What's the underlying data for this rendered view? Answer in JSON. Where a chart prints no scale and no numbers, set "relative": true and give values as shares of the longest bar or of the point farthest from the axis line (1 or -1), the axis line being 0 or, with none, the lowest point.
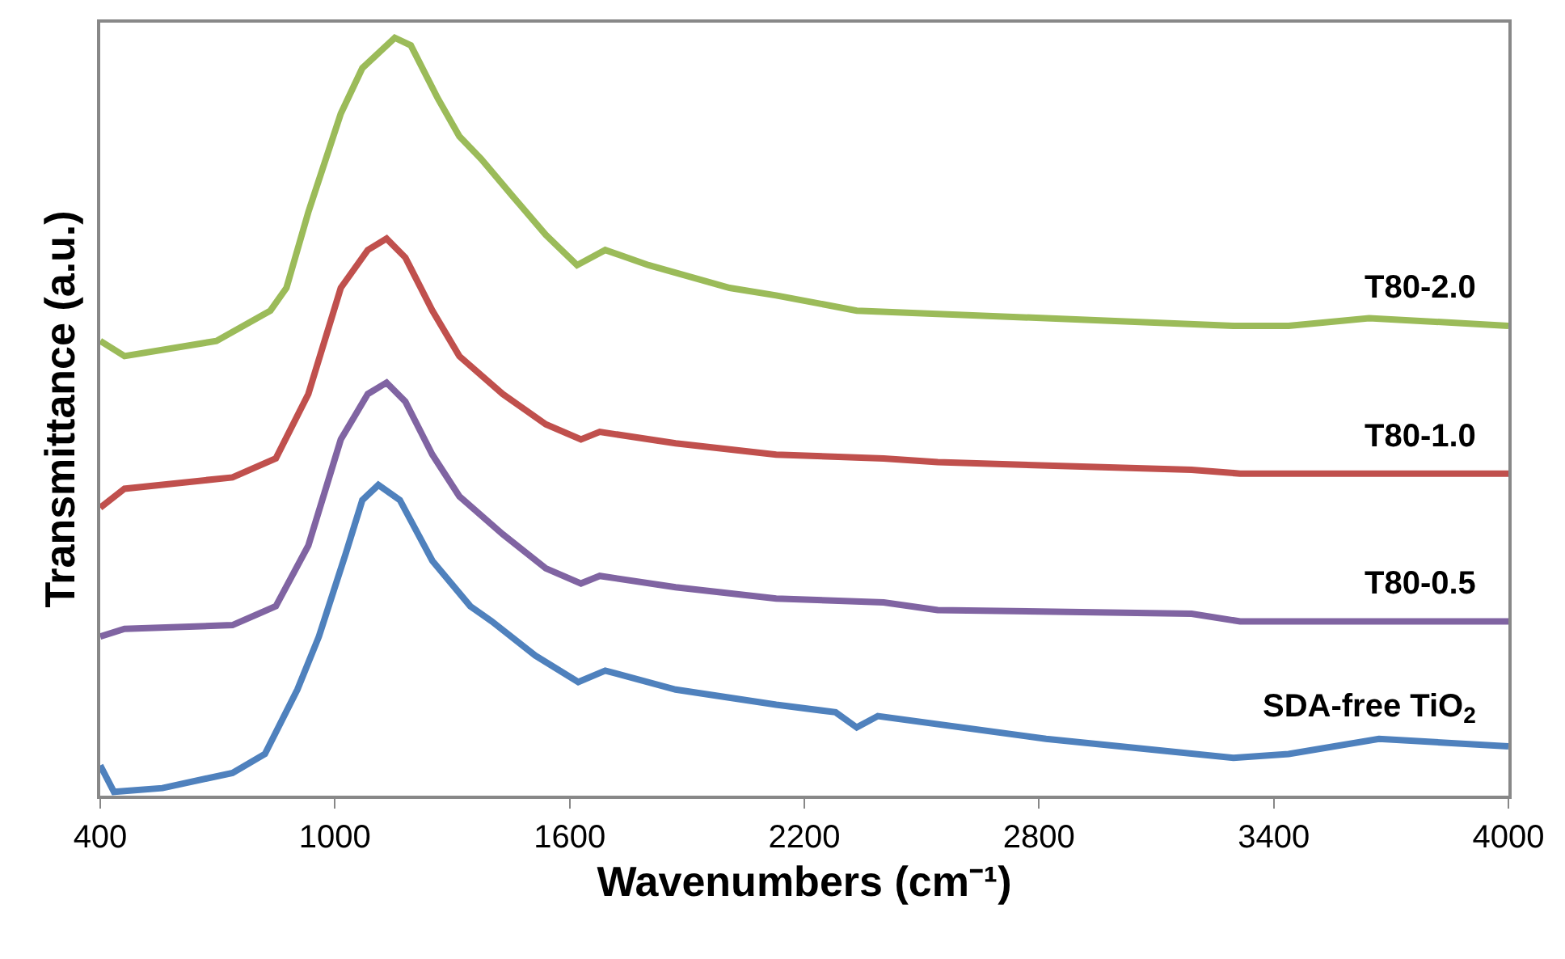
{
  "chart_data": {
    "type": "line",
    "relative": true,
    "xlabel": "Wavenumbers (cm⁻¹)",
    "ylabel": "Transmittance (a.u.)",
    "xlim": [
      400,
      4000
    ],
    "xticks": [
      400,
      1000,
      1600,
      2200,
      2800,
      3400,
      4000
    ],
    "legend": false,
    "marker": "none",
    "line_style": "solid",
    "series": [
      {
        "name": "T80-2.0",
        "color": "#9bbb59",
        "x": [
          400,
          462,
          697,
          835,
          876,
          932,
          1015,
          1070,
          1153,
          1194,
          1263,
          1318,
          1374,
          1456,
          1539,
          1619,
          1691,
          1802,
          2009,
          2128,
          2334,
          2818,
          3297,
          3438,
          3644,
          4000
        ],
        "values": [
          0.6,
          0.58,
          0.6,
          0.64,
          0.67,
          0.77,
          0.9,
          0.96,
          1.0,
          0.99,
          0.92,
          0.87,
          0.84,
          0.79,
          0.74,
          0.7,
          0.72,
          0.7,
          0.67,
          0.66,
          0.64,
          0.63,
          0.62,
          0.62,
          0.63,
          0.62
        ]
      },
      {
        "name": "T80-1.0",
        "color": "#c0504d",
        "x": [
          400,
          462,
          738,
          849,
          932,
          1015,
          1084,
          1132,
          1180,
          1249,
          1318,
          1429,
          1539,
          1629,
          1677,
          1871,
          2128,
          2403,
          2541,
          3190,
          3314,
          4000
        ],
        "values": [
          0.38,
          0.405,
          0.42,
          0.445,
          0.53,
          0.67,
          0.72,
          0.735,
          0.71,
          0.64,
          0.58,
          0.53,
          0.49,
          0.47,
          0.48,
          0.465,
          0.45,
          0.445,
          0.44,
          0.43,
          0.425,
          0.425
        ]
      },
      {
        "name": "T80-0.5",
        "color": "#8064a2",
        "x": [
          400,
          462,
          738,
          849,
          932,
          1015,
          1084,
          1132,
          1180,
          1249,
          1318,
          1429,
          1539,
          1629,
          1677,
          1871,
          2128,
          2403,
          2541,
          3190,
          3314,
          4000
        ],
        "values": [
          0.21,
          0.22,
          0.225,
          0.25,
          0.33,
          0.47,
          0.53,
          0.545,
          0.52,
          0.45,
          0.395,
          0.345,
          0.3,
          0.28,
          0.29,
          0.275,
          0.26,
          0.255,
          0.245,
          0.24,
          0.23,
          0.23
        ]
      },
      {
        "name": "SDA-free TiO$_{2}$",
        "color": "#4f81bd",
        "x": [
          400,
          435,
          559,
          738,
          821,
          904,
          959,
          1028,
          1070,
          1111,
          1166,
          1249,
          1346,
          1401,
          1512,
          1622,
          1691,
          1871,
          2128,
          2280,
          2334,
          2388,
          2818,
          3297,
          3438,
          3669,
          4000
        ],
        "values": [
          0.04,
          0.005,
          0.01,
          0.03,
          0.055,
          0.14,
          0.21,
          0.32,
          0.39,
          0.41,
          0.39,
          0.31,
          0.25,
          0.23,
          0.185,
          0.15,
          0.165,
          0.14,
          0.12,
          0.11,
          0.09,
          0.105,
          0.075,
          0.05,
          0.055,
          0.075,
          0.065
        ]
      }
    ]
  }
}
